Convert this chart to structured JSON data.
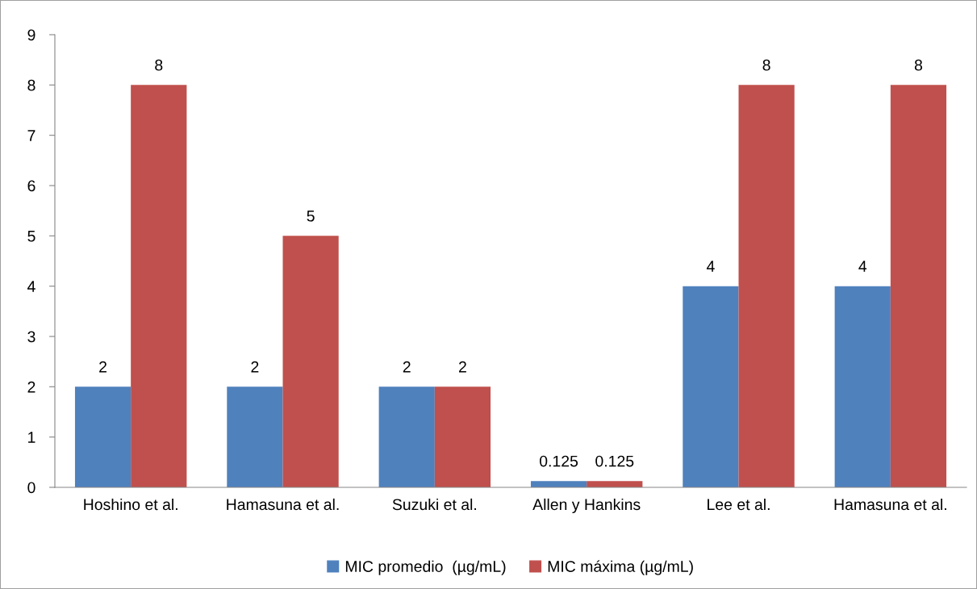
{
  "chart_data": {
    "type": "bar",
    "categories": [
      "Hoshino et al.",
      "Hamasuna et al.",
      "Suzuki et al.",
      "Allen y Hankins",
      "Lee et al.",
      "Hamasuna et al."
    ],
    "series": [
      {
        "name": "MIC promedio  (µg/mL)",
        "color": "#4f81bd",
        "values": [
          2,
          2,
          2,
          0.125,
          4,
          4
        ]
      },
      {
        "name": "MIC máxima (µg/mL)",
        "color": "#c0504d",
        "values": [
          8,
          5,
          2,
          0.125,
          8,
          8
        ]
      }
    ],
    "ylim": [
      0,
      9
    ],
    "yticks": [
      0,
      1,
      2,
      3,
      4,
      5,
      6,
      7,
      8,
      9
    ],
    "grid": false,
    "legend": "bottom",
    "data_labels": true
  }
}
